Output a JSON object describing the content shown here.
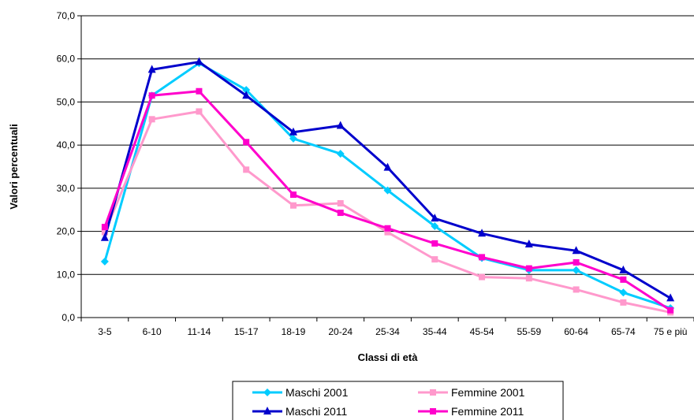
{
  "chart_data": {
    "type": "line",
    "xlabel": "Classi di età",
    "ylabel": "Valori percentuali",
    "categories": [
      "3-5",
      "6-10",
      "11-14",
      "15-17",
      "18-19",
      "20-24",
      "25-34",
      "35-44",
      "45-54",
      "55-59",
      "60-64",
      "65-74",
      "75 e più"
    ],
    "ylim": [
      0,
      70
    ],
    "ytick_step": 10,
    "grid": true,
    "legend_position": "bottom",
    "series": [
      {
        "name": "Maschi 2001",
        "color": "#00ccff",
        "marker": "diamond",
        "values": [
          13.0,
          51.5,
          59.0,
          52.8,
          41.5,
          38.0,
          29.5,
          21.2,
          13.8,
          11.0,
          11.0,
          5.8,
          2.2
        ]
      },
      {
        "name": "Femmine 2001",
        "color": "#ff99cc",
        "marker": "square",
        "values": [
          19.8,
          46.0,
          47.8,
          34.3,
          26.0,
          26.5,
          19.8,
          13.5,
          9.4,
          9.1,
          6.5,
          3.5,
          1.2
        ]
      },
      {
        "name": "Maschi 2011",
        "color": "#0000cc",
        "marker": "triangle",
        "values": [
          18.5,
          57.5,
          59.3,
          51.5,
          43.0,
          44.5,
          34.8,
          23.0,
          19.5,
          17.0,
          15.5,
          11.0,
          4.5
        ]
      },
      {
        "name": "Femmine 2011",
        "color": "#ff00cc",
        "marker": "square",
        "values": [
          21.0,
          51.5,
          52.5,
          40.7,
          28.5,
          24.3,
          20.7,
          17.2,
          14.0,
          11.4,
          12.8,
          8.8,
          1.7
        ]
      }
    ]
  }
}
